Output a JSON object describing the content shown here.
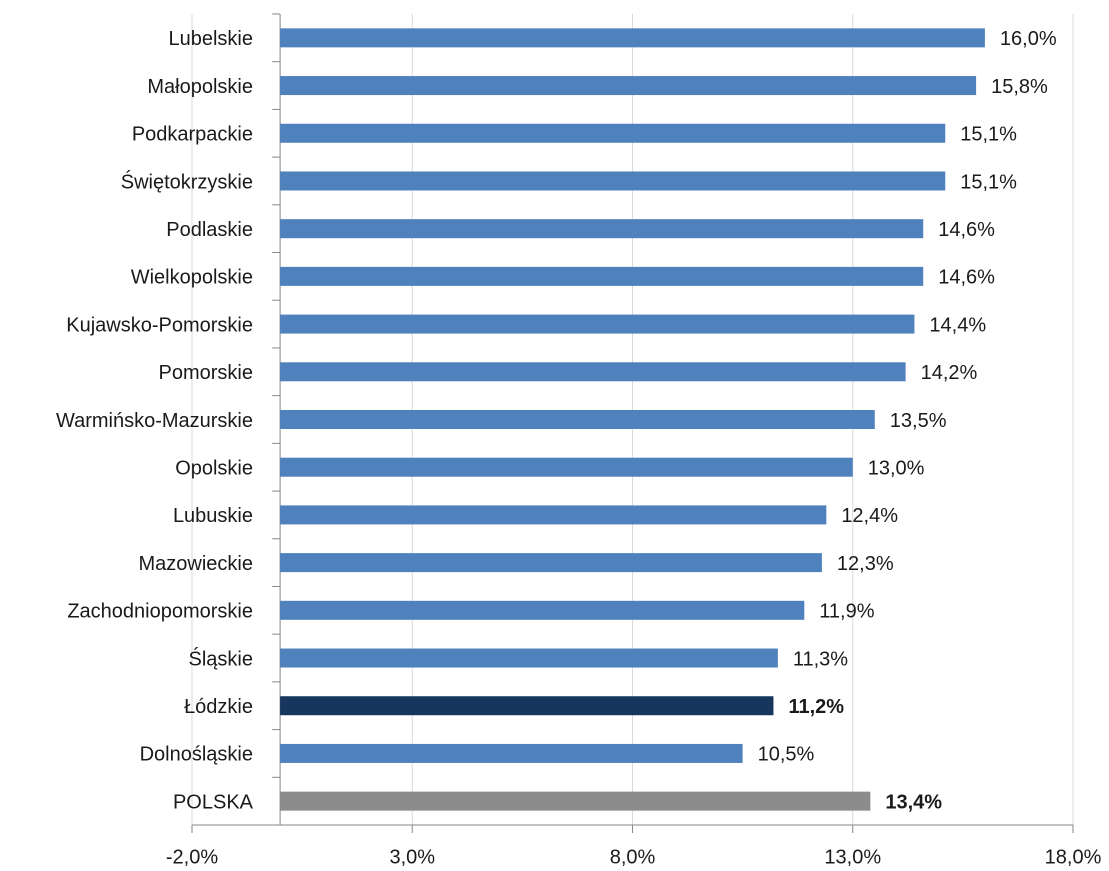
{
  "chart_data": {
    "type": "hbar",
    "categories": [
      "Lubelskie",
      "Małopolskie",
      "Podkarpackie",
      "Świętokrzyskie",
      "Podlaskie",
      "Wielkopolskie",
      "Kujawsko-Pomorskie",
      "Pomorskie",
      "Warmińsko-Mazurskie",
      "Opolskie",
      "Lubuskie",
      "Mazowieckie",
      "Zachodniopomorskie",
      "Śląskie",
      "Łódzkie",
      "Dolnośląskie",
      "POLSKA"
    ],
    "values": [
      16.0,
      15.8,
      15.1,
      15.1,
      14.6,
      14.6,
      14.4,
      14.2,
      13.5,
      13.0,
      12.4,
      12.3,
      11.9,
      11.3,
      11.2,
      10.5,
      13.4
    ],
    "value_labels": [
      "16,0%",
      "15,8%",
      "15,1%",
      "15,1%",
      "14,6%",
      "14,6%",
      "14,4%",
      "14,2%",
      "13,5%",
      "13,0%",
      "12,4%",
      "12,3%",
      "11,9%",
      "11,3%",
      "11,2%",
      "10,5%",
      "13,4%"
    ],
    "colors": [
      "#4f81bd",
      "#4f81bd",
      "#4f81bd",
      "#4f81bd",
      "#4f81bd",
      "#4f81bd",
      "#4f81bd",
      "#4f81bd",
      "#4f81bd",
      "#4f81bd",
      "#4f81bd",
      "#4f81bd",
      "#4f81bd",
      "#4f81bd",
      "#17365d",
      "#4f81bd",
      "#8c8c8c"
    ],
    "bold_labels": [
      false,
      false,
      false,
      false,
      false,
      false,
      false,
      false,
      false,
      false,
      false,
      false,
      false,
      false,
      true,
      false,
      true
    ],
    "xlim": [
      -2,
      18
    ],
    "xticks": [
      {
        "value": -2,
        "label": "-2,0%"
      },
      {
        "value": 3,
        "label": "3,0%"
      },
      {
        "value": 8,
        "label": "8,0%"
      },
      {
        "value": 13,
        "label": "13,0%"
      },
      {
        "value": 18,
        "label": "18,0%"
      }
    ],
    "grid": true
  }
}
